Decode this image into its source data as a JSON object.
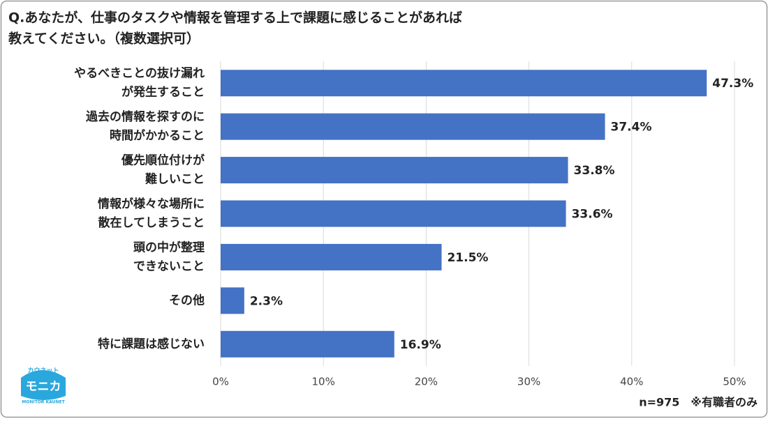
{
  "chart_data": {
    "type": "bar",
    "orientation": "horizontal",
    "title": [
      "Q.あなたが、仕事のタスクや情報を管理する上で課題に感じることがあれば",
      "教えてください。（複数選択可）"
    ],
    "categories": [
      [
        "やるべきことの抜け漏れ",
        "が発生すること"
      ],
      [
        "過去の情報を探すのに",
        "時間がかかること"
      ],
      [
        "優先順位付けが",
        "難しいこと"
      ],
      [
        "情報が様々な場所に",
        "散在してしまうこと"
      ],
      [
        "頭の中が整理",
        "できないこと"
      ],
      [
        "その他"
      ],
      [
        "特に課題は感じない"
      ]
    ],
    "values": [
      47.3,
      37.4,
      33.8,
      33.6,
      21.5,
      2.3,
      16.9
    ],
    "value_labels": [
      "47.3%",
      "37.4%",
      "33.8%",
      "33.6%",
      "21.5%",
      "2.3%",
      "16.9%"
    ],
    "color": "#4472c4",
    "xlim": [
      0,
      50
    ],
    "xticks": [
      {
        "value": 0,
        "label": "0%"
      },
      {
        "value": 10,
        "label": "10%"
      },
      {
        "value": 20,
        "label": "20%"
      },
      {
        "value": 30,
        "label": "30%"
      },
      {
        "value": 40,
        "label": "40%"
      },
      {
        "value": 50,
        "label": "50%"
      }
    ],
    "grid": true,
    "note": "n=975　※有職者のみ",
    "logo": {
      "top": "カウネット",
      "main": "モニカ",
      "sub": "MONITOR KAUNET"
    }
  }
}
